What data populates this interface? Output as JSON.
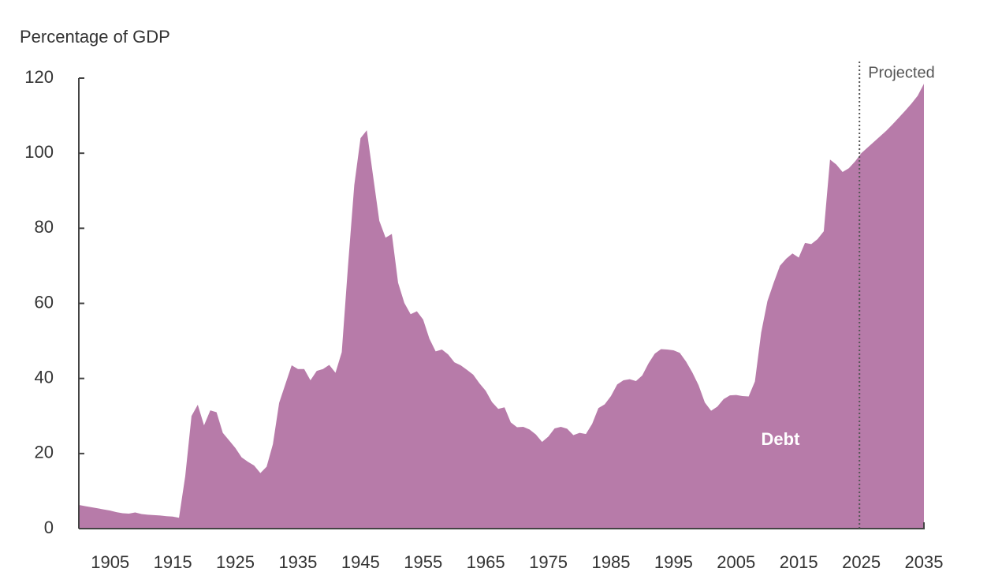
{
  "chart_data": {
    "type": "area",
    "y_label": "Percentage of GDP",
    "x": [
      1900,
      1901,
      1902,
      1903,
      1904,
      1905,
      1906,
      1907,
      1908,
      1909,
      1910,
      1911,
      1912,
      1913,
      1914,
      1915,
      1916,
      1917,
      1918,
      1919,
      1920,
      1921,
      1922,
      1923,
      1924,
      1925,
      1926,
      1927,
      1928,
      1929,
      1930,
      1931,
      1932,
      1933,
      1934,
      1935,
      1936,
      1937,
      1938,
      1939,
      1940,
      1941,
      1942,
      1943,
      1944,
      1945,
      1946,
      1947,
      1948,
      1949,
      1950,
      1951,
      1952,
      1953,
      1954,
      1955,
      1956,
      1957,
      1958,
      1959,
      1960,
      1961,
      1962,
      1963,
      1964,
      1965,
      1966,
      1967,
      1968,
      1969,
      1970,
      1971,
      1972,
      1973,
      1974,
      1975,
      1976,
      1977,
      1978,
      1979,
      1980,
      1981,
      1982,
      1983,
      1984,
      1985,
      1986,
      1987,
      1988,
      1989,
      1990,
      1991,
      1992,
      1993,
      1994,
      1995,
      1996,
      1997,
      1998,
      1999,
      2000,
      2001,
      2002,
      2003,
      2004,
      2005,
      2006,
      2007,
      2008,
      2009,
      2010,
      2011,
      2012,
      2013,
      2014,
      2015,
      2016,
      2017,
      2018,
      2019,
      2020,
      2021,
      2022,
      2023,
      2024,
      2025,
      2026,
      2027,
      2028,
      2029,
      2030,
      2031,
      2032,
      2033,
      2034,
      2035
    ],
    "series": [
      {
        "name": "Debt",
        "color": "#b77ba9",
        "values": [
          6.3,
          6,
          5.7,
          5.4,
          5.1,
          4.8,
          4.4,
          4.1,
          4,
          4.3,
          3.9,
          3.7,
          3.6,
          3.5,
          3.3,
          3.2,
          2.9,
          14,
          30,
          33,
          27.5,
          31.5,
          31,
          25.5,
          23.5,
          21.5,
          19,
          17.8,
          16.8,
          14.8,
          16.5,
          22.5,
          33.5,
          38.5,
          43.5,
          42.5,
          42.5,
          39.5,
          42,
          42.5,
          43.6,
          41.5,
          47,
          70,
          91.5,
          104,
          106.1,
          94,
          82,
          77.5,
          78.5,
          65.5,
          60.1,
          57.1,
          57.9,
          55.7,
          50.6,
          47.2,
          47.7,
          46.4,
          44.3,
          43.5,
          42.3,
          41,
          38.7,
          36.7,
          33.7,
          31.9,
          32.3,
          28.3,
          27,
          27.1,
          26.4,
          25.1,
          23.1,
          24.5,
          26.7,
          27.1,
          26.6,
          24.9,
          25.5,
          25.2,
          27.9,
          32.1,
          33.1,
          35.3,
          38.4,
          39.5,
          39.8,
          39.3,
          40.8,
          44,
          46.6,
          47.8,
          47.7,
          47.5,
          46.8,
          44.5,
          41.6,
          38.2,
          33.6,
          31.4,
          32.5,
          34.5,
          35.5,
          35.6,
          35.3,
          35.2,
          39.2,
          52.2,
          60.6,
          65.5,
          70,
          71.9,
          73.3,
          72.2,
          76.1,
          75.8,
          77.1,
          79.2,
          98.3,
          97,
          95,
          96,
          97.8,
          100,
          101.5,
          103,
          104.5,
          106,
          107.7,
          109.5,
          111.3,
          113.2,
          115.3,
          118.5
        ]
      }
    ],
    "xlim": [
      1900,
      2035
    ],
    "xticks": [
      1905,
      1915,
      1925,
      1935,
      1945,
      1955,
      1965,
      1975,
      1985,
      1995,
      2005,
      2015,
      2025,
      2035
    ],
    "ylim": [
      0,
      120
    ],
    "yticks": [
      0,
      20,
      40,
      60,
      80,
      100,
      120
    ],
    "annotations": [
      {
        "text": "Projected",
        "x": 2024.7
      }
    ]
  }
}
